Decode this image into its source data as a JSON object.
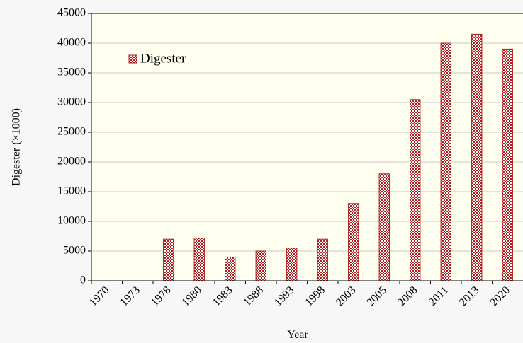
{
  "chart_data": {
    "type": "bar",
    "xlabel": "Year",
    "ylabel": "Digester (×1000)",
    "categories": [
      "1970",
      "1973",
      "1978",
      "1980",
      "1983",
      "1988",
      "1993",
      "1998",
      "2003",
      "2005",
      "2008",
      "2011",
      "2013",
      "2020"
    ],
    "series": [
      {
        "name": "Digester",
        "color": "#b01c1c",
        "values": [
          0,
          0,
          7000,
          7200,
          4000,
          5000,
          5500,
          7000,
          13000,
          18000,
          30500,
          40000,
          41500,
          39000
        ]
      }
    ],
    "ylim": [
      0,
      45000
    ],
    "yticks": [
      0,
      5000,
      10000,
      15000,
      20000,
      25000,
      30000,
      35000,
      40000,
      45000
    ],
    "grid": true,
    "legend": "upper left"
  }
}
